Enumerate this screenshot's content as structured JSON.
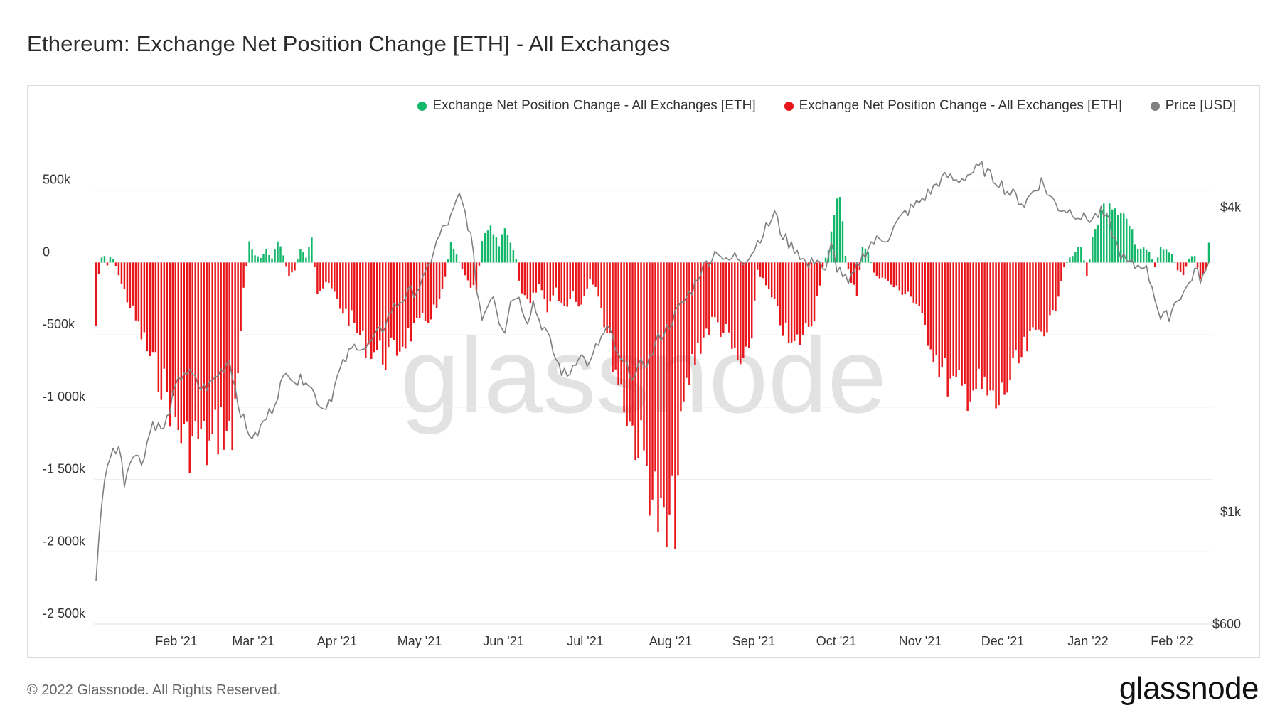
{
  "title": "Ethereum: Exchange Net Position Change [ETH] - All Exchanges",
  "legend": [
    {
      "label": "Exchange Net Position Change - All Exchanges [ETH]",
      "color": "#12b76a"
    },
    {
      "label": "Exchange Net Position Change - All Exchanges [ETH]",
      "color": "#e8161b"
    },
    {
      "label": "Price [USD]",
      "color": "#808080"
    }
  ],
  "watermark": "glassnode",
  "footer": {
    "copyright": "© 2022 Glassnode. All Rights Reserved.",
    "brand": "glassnode"
  },
  "chart_data": {
    "type": "bar",
    "title": "Ethereum: Exchange Net Position Change [ETH] - All Exchanges",
    "x_tick_labels": [
      "Feb '21",
      "Mar '21",
      "Apr '21",
      "May '21",
      "Jun '21",
      "Jul '21",
      "Aug '21",
      "Sep '21",
      "Oct '21",
      "Nov '21",
      "Dec '21",
      "Jan '22",
      "Feb '22"
    ],
    "left_axis": {
      "ticks": [
        500000,
        0,
        -500000,
        -1000000,
        -1500000,
        -2000000,
        -2500000
      ],
      "tick_labels": [
        "500k",
        "0",
        "-500k",
        "-1 000k",
        "-1 500k",
        "-2 000k",
        "-2 500k"
      ],
      "range": [
        -2500000,
        1000000
      ]
    },
    "right_axis": {
      "scale": "log",
      "ticks": [
        4000,
        1000,
        600
      ],
      "tick_labels": [
        "$4k",
        "$1k",
        "$600"
      ],
      "range": [
        600,
        6000
      ]
    },
    "colors": {
      "positive": "#12b76a",
      "negative": "#e8161b",
      "price": "#808080"
    },
    "net_position_keypoints": [
      [
        0,
        -440000
      ],
      [
        1,
        -80000
      ],
      [
        2,
        40000
      ],
      [
        3,
        50000
      ],
      [
        4,
        -20000
      ],
      [
        5,
        40000
      ],
      [
        6,
        30000
      ],
      [
        7,
        -20000
      ],
      [
        9,
        -150000
      ],
      [
        12,
        -300000
      ],
      [
        16,
        -500000
      ],
      [
        20,
        -700000
      ],
      [
        24,
        -850000
      ],
      [
        28,
        -1100000
      ],
      [
        32,
        -1250000
      ],
      [
        36,
        -1200000
      ],
      [
        40,
        -1300000
      ],
      [
        44,
        -1100000
      ],
      [
        48,
        -1250000
      ],
      [
        50,
        -700000
      ],
      [
        52,
        -200000
      ],
      [
        54,
        150000
      ],
      [
        56,
        60000
      ],
      [
        58,
        30000
      ],
      [
        60,
        80000
      ],
      [
        62,
        30000
      ],
      [
        64,
        150000
      ],
      [
        66,
        50000
      ],
      [
        68,
        -100000
      ],
      [
        70,
        -50000
      ],
      [
        72,
        100000
      ],
      [
        74,
        30000
      ],
      [
        76,
        150000
      ],
      [
        78,
        -200000
      ],
      [
        82,
        -150000
      ],
      [
        86,
        -300000
      ],
      [
        90,
        -400000
      ],
      [
        94,
        -550000
      ],
      [
        98,
        -600000
      ],
      [
        102,
        -650000
      ],
      [
        106,
        -600000
      ],
      [
        110,
        -500000
      ],
      [
        114,
        -450000
      ],
      [
        118,
        -350000
      ],
      [
        121,
        -300000
      ],
      [
        123,
        -100000
      ],
      [
        125,
        150000
      ],
      [
        127,
        60000
      ],
      [
        129,
        -50000
      ],
      [
        131,
        -150000
      ],
      [
        134,
        -200000
      ],
      [
        136,
        150000
      ],
      [
        138,
        270000
      ],
      [
        140,
        200000
      ],
      [
        142,
        120000
      ],
      [
        144,
        220000
      ],
      [
        146,
        150000
      ],
      [
        148,
        30000
      ],
      [
        150,
        -250000
      ],
      [
        153,
        -300000
      ],
      [
        156,
        -150000
      ],
      [
        159,
        -300000
      ],
      [
        162,
        -200000
      ],
      [
        165,
        -300000
      ],
      [
        168,
        -200000
      ],
      [
        171,
        -300000
      ],
      [
        174,
        -100000
      ],
      [
        177,
        -200000
      ],
      [
        180,
        -500000
      ],
      [
        184,
        -800000
      ],
      [
        188,
        -1100000
      ],
      [
        192,
        -1300000
      ],
      [
        196,
        -1550000
      ],
      [
        199,
        -1850000
      ],
      [
        201,
        -1950000
      ],
      [
        204,
        -1700000
      ],
      [
        207,
        -1000000
      ],
      [
        210,
        -700000
      ],
      [
        214,
        -500000
      ],
      [
        218,
        -400000
      ],
      [
        222,
        -500000
      ],
      [
        226,
        -700000
      ],
      [
        230,
        -700000
      ],
      [
        233,
        -50000
      ],
      [
        237,
        -200000
      ],
      [
        241,
        -400000
      ],
      [
        245,
        -600000
      ],
      [
        249,
        -500000
      ],
      [
        253,
        -350000
      ],
      [
        256,
        -30000
      ],
      [
        258,
        100000
      ],
      [
        260,
        380000
      ],
      [
        262,
        440000
      ],
      [
        264,
        50000
      ],
      [
        266,
        -150000
      ],
      [
        268,
        -200000
      ],
      [
        270,
        100000
      ],
      [
        272,
        80000
      ],
      [
        274,
        -80000
      ],
      [
        277,
        -100000
      ],
      [
        280,
        -150000
      ],
      [
        283,
        -200000
      ],
      [
        286,
        -200000
      ],
      [
        289,
        -300000
      ],
      [
        293,
        -500000
      ],
      [
        297,
        -700000
      ],
      [
        301,
        -850000
      ],
      [
        305,
        -900000
      ],
      [
        309,
        -850000
      ],
      [
        313,
        -900000
      ],
      [
        317,
        -1000000
      ],
      [
        321,
        -850000
      ],
      [
        325,
        -700000
      ],
      [
        329,
        -550000
      ],
      [
        333,
        -450000
      ],
      [
        337,
        -400000
      ],
      [
        339,
        -200000
      ],
      [
        341,
        -30000
      ],
      [
        343,
        30000
      ],
      [
        345,
        80000
      ],
      [
        347,
        130000
      ],
      [
        349,
        -100000
      ],
      [
        351,
        150000
      ],
      [
        353,
        300000
      ],
      [
        355,
        380000
      ],
      [
        357,
        450000
      ],
      [
        359,
        400000
      ],
      [
        361,
        380000
      ],
      [
        363,
        300000
      ],
      [
        365,
        200000
      ],
      [
        367,
        100000
      ],
      [
        369,
        120000
      ],
      [
        371,
        80000
      ],
      [
        373,
        -30000
      ],
      [
        375,
        110000
      ],
      [
        377,
        80000
      ],
      [
        379,
        60000
      ],
      [
        381,
        -50000
      ],
      [
        383,
        -80000
      ],
      [
        385,
        30000
      ],
      [
        387,
        50000
      ],
      [
        389,
        -120000
      ],
      [
        391,
        -40000
      ],
      [
        392,
        160000
      ]
    ],
    "price_keypoints": [
      [
        0,
        730
      ],
      [
        2,
        1050
      ],
      [
        5,
        1300
      ],
      [
        8,
        1350
      ],
      [
        10,
        1150
      ],
      [
        13,
        1320
      ],
      [
        16,
        1250
      ],
      [
        20,
        1500
      ],
      [
        24,
        1450
      ],
      [
        28,
        1750
      ],
      [
        31,
        1900
      ],
      [
        34,
        1850
      ],
      [
        37,
        1750
      ],
      [
        40,
        1780
      ],
      [
        44,
        1900
      ],
      [
        47,
        2000
      ],
      [
        50,
        1650
      ],
      [
        53,
        1450
      ],
      [
        56,
        1400
      ],
      [
        59,
        1500
      ],
      [
        62,
        1600
      ],
      [
        65,
        1780
      ],
      [
        68,
        1900
      ],
      [
        71,
        1800
      ],
      [
        74,
        1850
      ],
      [
        77,
        1700
      ],
      [
        80,
        1600
      ],
      [
        83,
        1700
      ],
      [
        86,
        1900
      ],
      [
        89,
        2050
      ],
      [
        92,
        2150
      ],
      [
        95,
        2100
      ],
      [
        98,
        2200
      ],
      [
        101,
        2300
      ],
      [
        104,
        2500
      ],
      [
        107,
        2600
      ],
      [
        110,
        2700
      ],
      [
        113,
        2750
      ],
      [
        116,
        2900
      ],
      [
        119,
        3300
      ],
      [
        122,
        3600
      ],
      [
        125,
        3800
      ],
      [
        128,
        4200
      ],
      [
        130,
        3900
      ],
      [
        132,
        3500
      ],
      [
        134,
        2800
      ],
      [
        136,
        2400
      ],
      [
        138,
        2600
      ],
      [
        140,
        2700
      ],
      [
        142,
        2400
      ],
      [
        144,
        2300
      ],
      [
        146,
        2600
      ],
      [
        148,
        2700
      ],
      [
        150,
        2550
      ],
      [
        152,
        2400
      ],
      [
        154,
        2600
      ],
      [
        156,
        2400
      ],
      [
        158,
        2300
      ],
      [
        160,
        2150
      ],
      [
        162,
        2000
      ],
      [
        164,
        1900
      ],
      [
        166,
        1850
      ],
      [
        168,
        1950
      ],
      [
        170,
        2050
      ],
      [
        172,
        2000
      ],
      [
        174,
        1950
      ],
      [
        176,
        2100
      ],
      [
        178,
        2200
      ],
      [
        180,
        2300
      ],
      [
        182,
        2200
      ],
      [
        184,
        2000
      ],
      [
        186,
        1950
      ],
      [
        188,
        1900
      ],
      [
        190,
        1850
      ],
      [
        192,
        1950
      ],
      [
        195,
        2000
      ],
      [
        198,
        2200
      ],
      [
        201,
        2300
      ],
      [
        204,
        2450
      ],
      [
        207,
        2600
      ],
      [
        210,
        2750
      ],
      [
        213,
        3000
      ],
      [
        216,
        3150
      ],
      [
        219,
        3300
      ],
      [
        222,
        3100
      ],
      [
        225,
        3200
      ],
      [
        228,
        3150
      ],
      [
        231,
        3250
      ],
      [
        234,
        3500
      ],
      [
        237,
        3700
      ],
      [
        239,
        3900
      ],
      [
        241,
        3600
      ],
      [
        243,
        3450
      ],
      [
        245,
        3350
      ],
      [
        247,
        3300
      ],
      [
        249,
        3150
      ],
      [
        251,
        3050
      ],
      [
        254,
        3200
      ],
      [
        257,
        2950
      ],
      [
        259,
        3350
      ],
      [
        261,
        3050
      ],
      [
        263,
        2950
      ],
      [
        265,
        2800
      ],
      [
        267,
        2950
      ],
      [
        270,
        3200
      ],
      [
        273,
        3400
      ],
      [
        276,
        3450
      ],
      [
        279,
        3500
      ],
      [
        282,
        3700
      ],
      [
        285,
        3900
      ],
      [
        288,
        4000
      ],
      [
        291,
        4150
      ],
      [
        294,
        4300
      ],
      [
        297,
        4500
      ],
      [
        300,
        4600
      ],
      [
        303,
        4500
      ],
      [
        306,
        4600
      ],
      [
        309,
        4700
      ],
      [
        312,
        4800
      ],
      [
        315,
        4600
      ],
      [
        318,
        4500
      ],
      [
        321,
        4300
      ],
      [
        324,
        4200
      ],
      [
        327,
        4050
      ],
      [
        330,
        4300
      ],
      [
        333,
        4500
      ],
      [
        336,
        4200
      ],
      [
        339,
        4000
      ],
      [
        342,
        3950
      ],
      [
        345,
        3900
      ],
      [
        348,
        3800
      ],
      [
        351,
        3800
      ],
      [
        354,
        3900
      ],
      [
        357,
        3700
      ],
      [
        360,
        3300
      ],
      [
        363,
        3100
      ],
      [
        366,
        3050
      ],
      [
        369,
        3100
      ],
      [
        372,
        2800
      ],
      [
        375,
        2400
      ],
      [
        378,
        2450
      ],
      [
        381,
        2650
      ],
      [
        384,
        2750
      ],
      [
        387,
        3000
      ],
      [
        389,
        2900
      ],
      [
        391,
        2950
      ],
      [
        392,
        3100
      ]
    ]
  }
}
